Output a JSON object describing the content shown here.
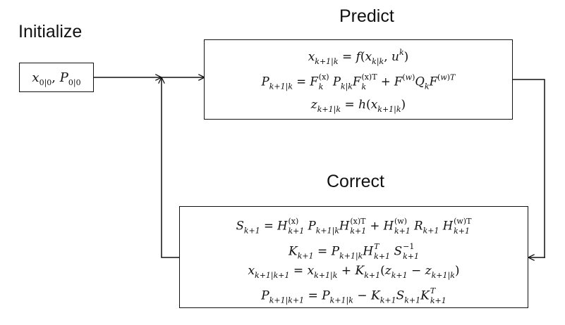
{
  "labels": {
    "initialize": "Initialize",
    "predict": "Predict",
    "correct": "Correct"
  },
  "init_box": {
    "x": "x",
    "x_sub": "0|0",
    "comma": ",",
    "p": "P",
    "p_sub": "0|0"
  },
  "predict_eqs": [
    "x_{k+1|k} = f(x_{k|k}, u^k)",
    "P_{k+1|k} = F_k^{(x)} P_{k|k} F_k^{(x)T} + F^{(w)} Q_k F^{(w)T}",
    "z_{k+1|k} = h(x_{k+1|k})"
  ],
  "correct_eqs": [
    "S_{k+1} = H_{k+1}^{(x)} P_{k+1|k} H_{k+1}^{(x)T} + H_{k+1}^{(w)} R_{k+1} H_{k+1}^{(w)T}",
    "K_{k+1} = P_{k+1|k} H_{k+1}^T S_{k+1}^{-1}",
    "x_{k+1|k+1} = x_{k+1|k} + K_{k+1}(z_{k+1} - z_{k+1|k})",
    "P_{k+1|k+1} = P_{k+1|k} - K_{k+1} S_{k+1} K_{k+1}^T"
  ]
}
